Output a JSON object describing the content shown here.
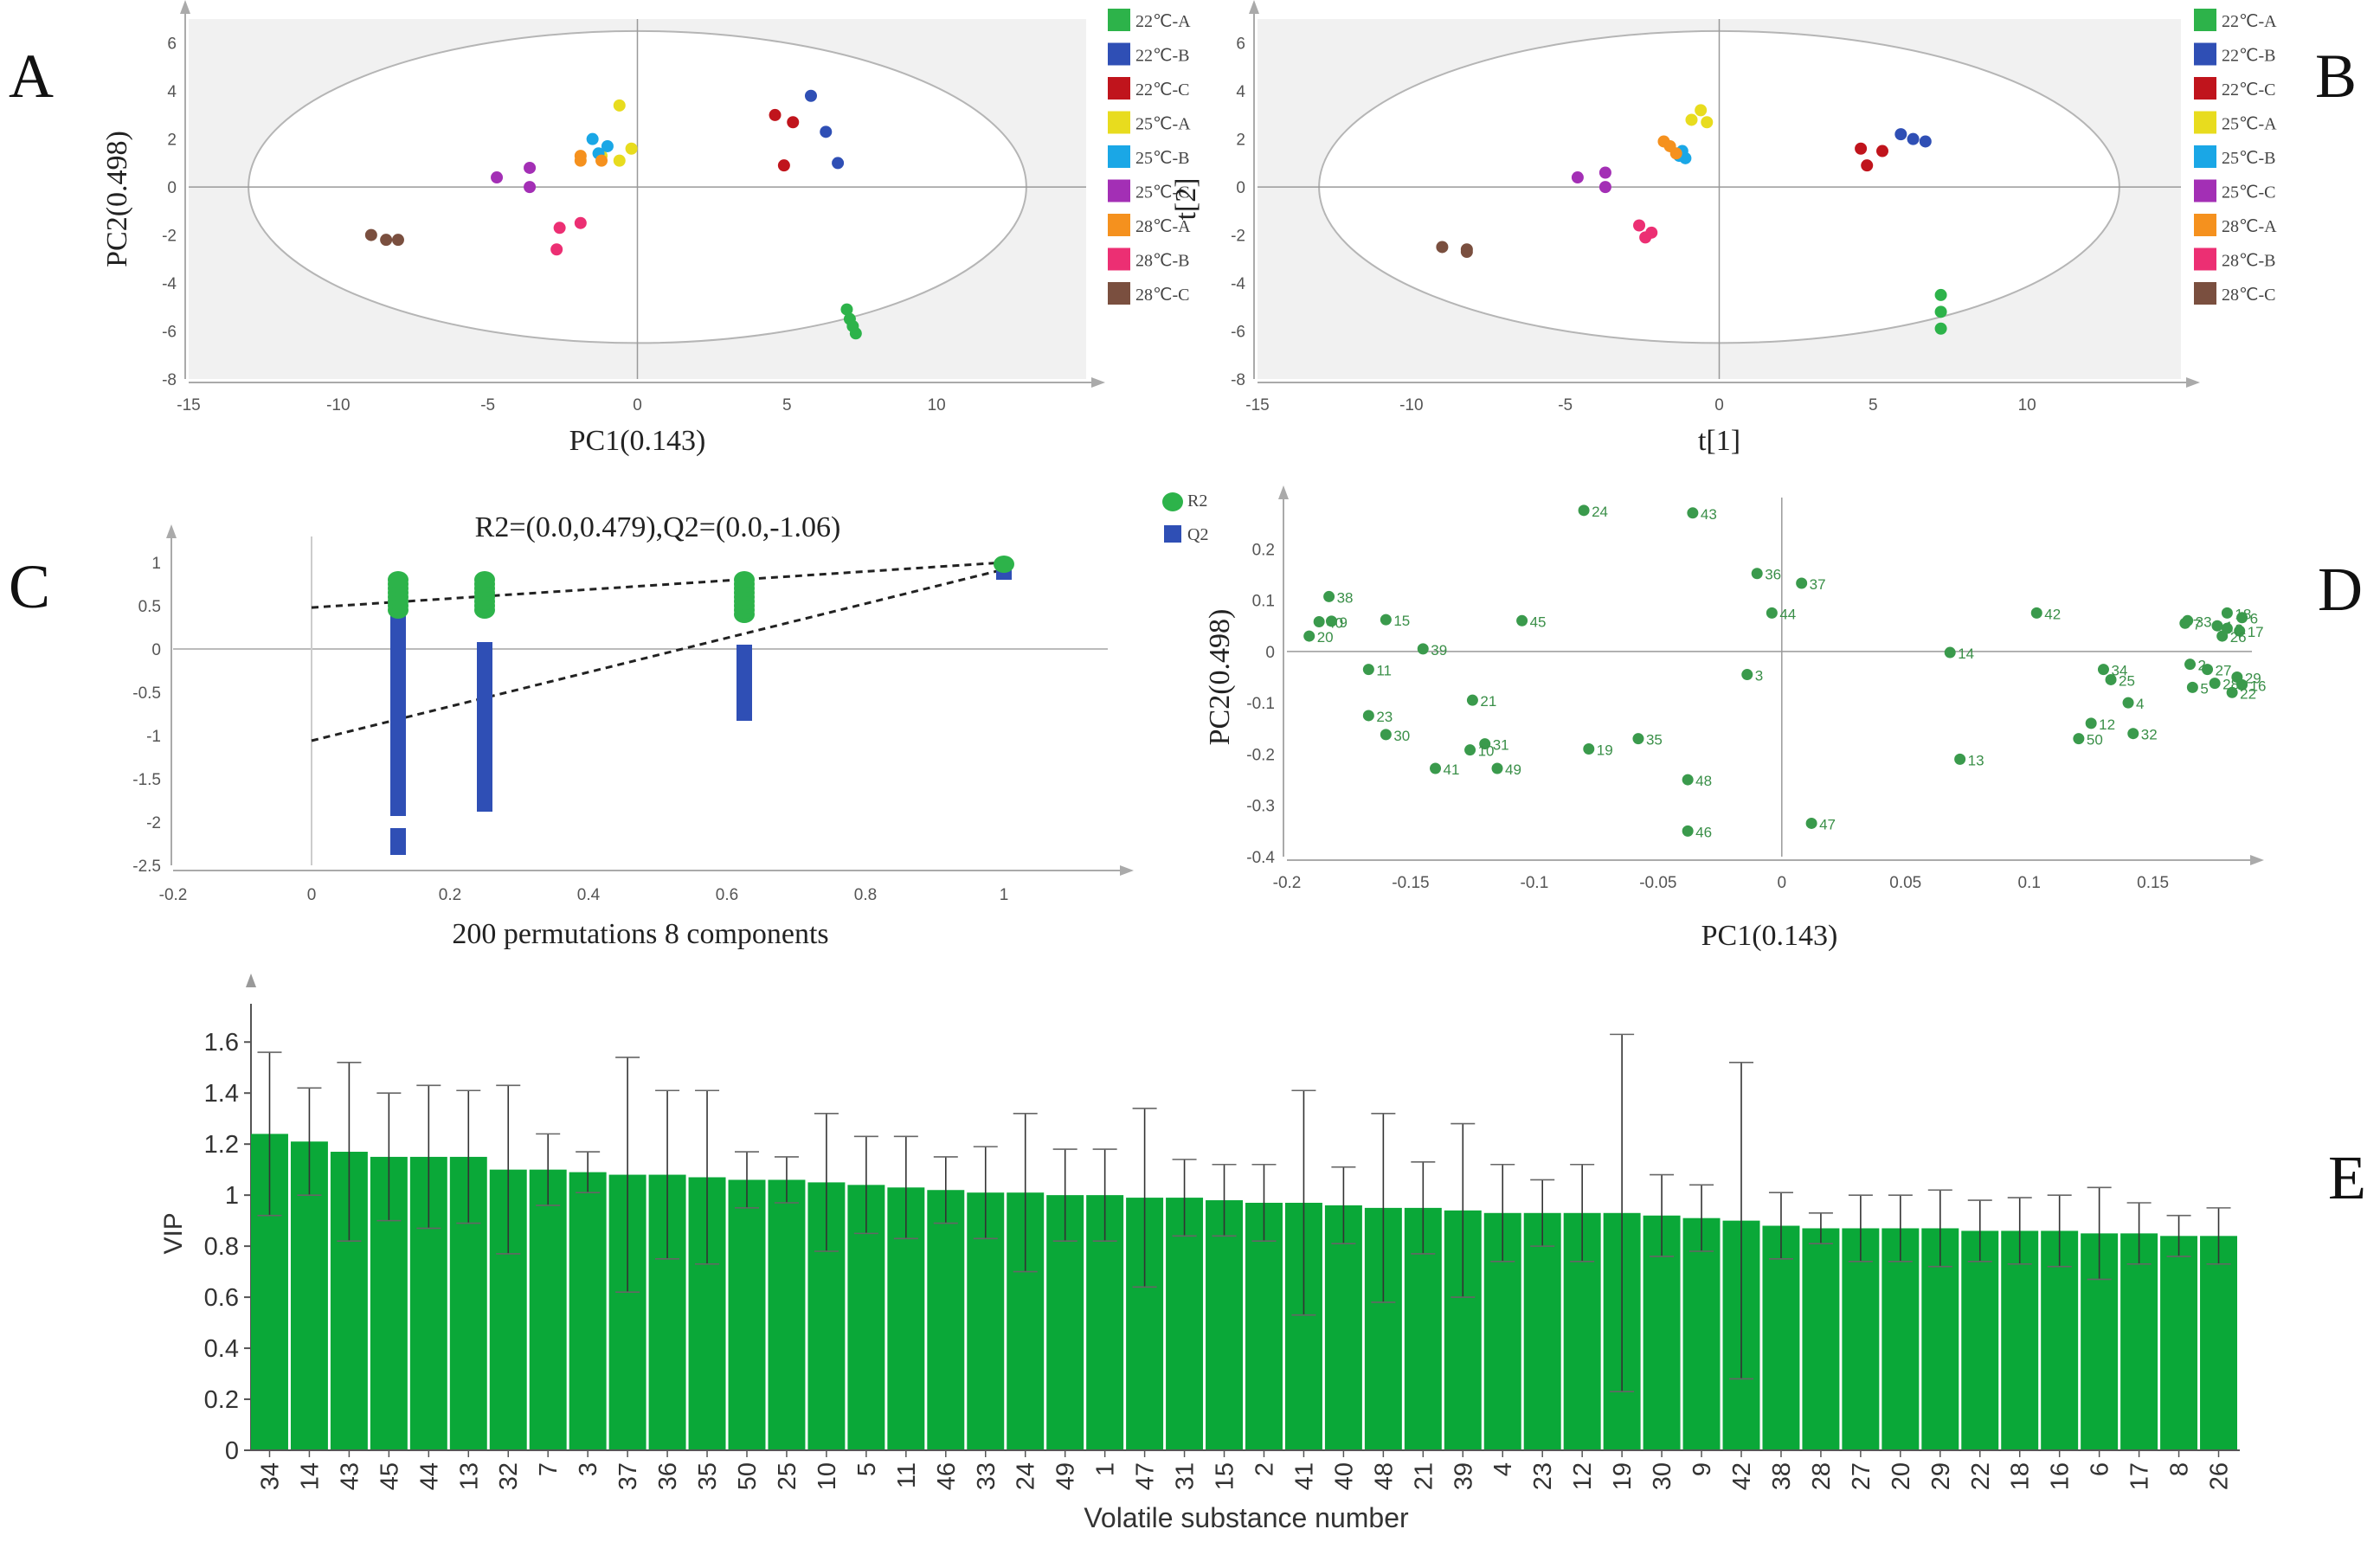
{
  "panel_letters": [
    "A",
    "B",
    "C",
    "D",
    "E"
  ],
  "chart_data": [
    {
      "panel": "A",
      "type": "scatter",
      "xlabel": "PC1(0.143)",
      "ylabel": "PC2(0.498)",
      "xlim": [
        -15,
        15
      ],
      "ylim": [
        -8,
        7
      ],
      "xticks": [
        -15,
        -10,
        -5,
        0,
        5,
        10
      ],
      "yticks": [
        -8,
        -6,
        -4,
        -2,
        0,
        2,
        4,
        6
      ],
      "ellipse": {
        "rx": 13,
        "ry": 6.5
      },
      "legend": {
        "position": "right"
      },
      "series": [
        {
          "name": "22℃-A",
          "color": "#2db34a",
          "points": [
            [
              7.0,
              -5.1
            ],
            [
              7.1,
              -5.5
            ],
            [
              7.3,
              -6.1
            ],
            [
              7.2,
              -5.8
            ]
          ]
        },
        {
          "name": "22℃-B",
          "color": "#2f4fb5",
          "points": [
            [
              5.8,
              3.8
            ],
            [
              6.3,
              2.3
            ],
            [
              6.7,
              1.0
            ]
          ]
        },
        {
          "name": "22℃-C",
          "color": "#c0141c",
          "points": [
            [
              4.6,
              3.0
            ],
            [
              5.2,
              2.7
            ],
            [
              4.9,
              0.9
            ]
          ]
        },
        {
          "name": "25℃-A",
          "color": "#e8dc1e",
          "points": [
            [
              -0.6,
              3.4
            ],
            [
              -0.2,
              1.6
            ],
            [
              -0.6,
              1.1
            ],
            [
              -1.2,
              1.3
            ]
          ]
        },
        {
          "name": "25℃-B",
          "color": "#1aa7e6",
          "points": [
            [
              -1.5,
              2.0
            ],
            [
              -1.0,
              1.7
            ],
            [
              -1.3,
              1.4
            ]
          ]
        },
        {
          "name": "25℃-C",
          "color": "#a32fb5",
          "points": [
            [
              -4.7,
              0.4
            ],
            [
              -3.6,
              0.8
            ],
            [
              -3.6,
              0.0
            ]
          ]
        },
        {
          "name": "28℃-A",
          "color": "#f5911e",
          "points": [
            [
              -1.9,
              1.3
            ],
            [
              -1.9,
              1.1
            ],
            [
              -1.2,
              1.1
            ]
          ]
        },
        {
          "name": "28℃-B",
          "color": "#ec2f73",
          "points": [
            [
              -2.6,
              -1.7
            ],
            [
              -2.7,
              -2.6
            ],
            [
              -1.9,
              -1.5
            ]
          ]
        },
        {
          "name": "28℃-C",
          "color": "#7a4f3f",
          "points": [
            [
              -8.9,
              -2.0
            ],
            [
              -8.4,
              -2.2
            ],
            [
              -8.0,
              -2.2
            ]
          ]
        }
      ]
    },
    {
      "panel": "B",
      "type": "scatter",
      "xlabel": "t[1]",
      "ylabel": "t[2]",
      "xlim": [
        -15,
        15
      ],
      "ylim": [
        -8,
        7
      ],
      "xticks": [
        -15,
        -10,
        -5,
        0,
        5,
        10
      ],
      "yticks": [
        -8,
        -6,
        -4,
        -2,
        0,
        2,
        4,
        6
      ],
      "ellipse": {
        "rx": 13,
        "ry": 6.5
      },
      "legend": {
        "position": "right"
      },
      "series": [
        {
          "name": "22℃-A",
          "color": "#2db34a",
          "points": [
            [
              7.2,
              -4.5
            ],
            [
              7.2,
              -5.2
            ],
            [
              7.2,
              -5.9
            ]
          ]
        },
        {
          "name": "22℃-B",
          "color": "#2f4fb5",
          "points": [
            [
              5.9,
              2.2
            ],
            [
              6.3,
              2.0
            ],
            [
              6.7,
              1.9
            ]
          ]
        },
        {
          "name": "22℃-C",
          "color": "#c0141c",
          "points": [
            [
              4.6,
              1.6
            ],
            [
              4.8,
              0.9
            ],
            [
              5.3,
              1.5
            ]
          ]
        },
        {
          "name": "25℃-A",
          "color": "#e8dc1e",
          "points": [
            [
              -0.9,
              2.8
            ],
            [
              -0.6,
              3.2
            ],
            [
              -0.4,
              2.7
            ]
          ]
        },
        {
          "name": "25℃-B",
          "color": "#1aa7e6",
          "points": [
            [
              -1.2,
              1.5
            ],
            [
              -1.1,
              1.2
            ],
            [
              -1.3,
              1.3
            ]
          ]
        },
        {
          "name": "25℃-C",
          "color": "#a32fb5",
          "points": [
            [
              -4.6,
              0.4
            ],
            [
              -3.7,
              0.6
            ],
            [
              -3.7,
              0.0
            ]
          ]
        },
        {
          "name": "28℃-A",
          "color": "#f5911e",
          "points": [
            [
              -1.8,
              1.9
            ],
            [
              -1.6,
              1.7
            ],
            [
              -1.4,
              1.4
            ]
          ]
        },
        {
          "name": "28℃-B",
          "color": "#ec2f73",
          "points": [
            [
              -2.6,
              -1.6
            ],
            [
              -2.4,
              -2.1
            ],
            [
              -2.2,
              -1.9
            ]
          ]
        },
        {
          "name": "28℃-C",
          "color": "#7a4f3f",
          "points": [
            [
              -9.0,
              -2.5
            ],
            [
              -8.2,
              -2.6
            ],
            [
              -8.2,
              -2.7
            ]
          ]
        }
      ]
    },
    {
      "panel": "C",
      "type": "scatter",
      "title": "R2=(0.0,0.479),Q2=(0.0,-1.06)",
      "xlabel": "200 permutations 8 components",
      "xlim": [
        -0.2,
        1.15
      ],
      "ylim": [
        -2.5,
        1.3
      ],
      "xticks": [
        -0.2,
        0,
        0.2,
        0.4,
        0.6,
        0.8,
        1
      ],
      "yticks": [
        -2.5,
        -2,
        -1.5,
        -1,
        -0.5,
        0,
        0.5,
        1
      ],
      "legend": {
        "position": "top-right"
      },
      "series": [
        {
          "name": "R2",
          "marker": "circle",
          "color": "#2db34a",
          "x": [
            0.125,
            0.25,
            0.625,
            1.0
          ],
          "ymin": [
            0.45,
            0.45,
            0.4,
            0.98
          ],
          "ymax": [
            0.82,
            0.8,
            0.8,
            1.0
          ]
        },
        {
          "name": "Q2",
          "marker": "square",
          "color": "#2f4fb5",
          "x": [
            0.125,
            0.25,
            0.625,
            1.0
          ],
          "ymin": [
            -1.85,
            -1.8,
            -0.75,
            0.88
          ],
          "ymax": [
            0.35,
            0.0,
            0.0,
            0.95
          ],
          "outliers": [
            [
              0.125,
              -2.3
            ],
            [
              0.125,
              -2.15
            ]
          ]
        }
      ],
      "regression_lines": [
        {
          "name": "R2",
          "intercept": 0.479,
          "slope": 0.521
        },
        {
          "name": "Q2",
          "intercept": -1.06,
          "slope": 1.98
        }
      ]
    },
    {
      "panel": "D",
      "type": "scatter",
      "xlabel": "PC1(0.143)",
      "ylabel": "PC2(0.498)",
      "xlim": [
        -0.2,
        0.19
      ],
      "ylim": [
        -0.4,
        0.3
      ],
      "xticks": [
        -0.2,
        -0.15,
        -0.1,
        -0.05,
        0,
        0.05,
        0.1,
        0.15
      ],
      "yticks": [
        -0.4,
        -0.3,
        -0.2,
        -0.1,
        0,
        0.1,
        0.2
      ],
      "color": "#3a9a4c",
      "legend": {
        "position": "top-left"
      },
      "points": [
        {
          "label": "24",
          "x": -0.08,
          "y": 0.275
        },
        {
          "label": "43",
          "x": -0.036,
          "y": 0.27
        },
        {
          "label": "38",
          "x": -0.183,
          "y": 0.107
        },
        {
          "label": "40",
          "x": -0.187,
          "y": 0.058
        },
        {
          "label": "9",
          "x": -0.182,
          "y": 0.059
        },
        {
          "label": "15",
          "x": -0.16,
          "y": 0.062
        },
        {
          "label": "20",
          "x": -0.191,
          "y": 0.03
        },
        {
          "label": "11",
          "x": -0.167,
          "y": -0.035
        },
        {
          "label": "39",
          "x": -0.145,
          "y": 0.005
        },
        {
          "label": "45",
          "x": -0.105,
          "y": 0.06
        },
        {
          "label": "36",
          "x": -0.01,
          "y": 0.152
        },
        {
          "label": "37",
          "x": 0.008,
          "y": 0.133
        },
        {
          "label": "44",
          "x": -0.004,
          "y": 0.075
        },
        {
          "label": "3",
          "x": -0.014,
          "y": -0.045
        },
        {
          "label": "21",
          "x": -0.125,
          "y": -0.095
        },
        {
          "label": "23",
          "x": -0.167,
          "y": -0.125
        },
        {
          "label": "30",
          "x": -0.16,
          "y": -0.162
        },
        {
          "label": "31",
          "x": -0.12,
          "y": -0.18
        },
        {
          "label": "10",
          "x": -0.126,
          "y": -0.192
        },
        {
          "label": "41",
          "x": -0.14,
          "y": -0.228
        },
        {
          "label": "49",
          "x": -0.115,
          "y": -0.228
        },
        {
          "label": "19",
          "x": -0.078,
          "y": -0.19
        },
        {
          "label": "35",
          "x": -0.058,
          "y": -0.17
        },
        {
          "label": "48",
          "x": -0.038,
          "y": -0.25
        },
        {
          "label": "46",
          "x": -0.038,
          "y": -0.35
        },
        {
          "label": "47",
          "x": 0.012,
          "y": -0.335
        },
        {
          "label": "14",
          "x": 0.068,
          "y": -0.002
        },
        {
          "label": "13",
          "x": 0.072,
          "y": -0.21
        },
        {
          "label": "42",
          "x": 0.103,
          "y": 0.075
        },
        {
          "label": "34",
          "x": 0.13,
          "y": -0.035
        },
        {
          "label": "25",
          "x": 0.133,
          "y": -0.055
        },
        {
          "label": "4",
          "x": 0.14,
          "y": -0.1
        },
        {
          "label": "12",
          "x": 0.125,
          "y": -0.14
        },
        {
          "label": "50",
          "x": 0.12,
          "y": -0.17
        },
        {
          "label": "32",
          "x": 0.142,
          "y": -0.16
        },
        {
          "label": "7",
          "x": 0.163,
          "y": 0.055
        },
        {
          "label": "33",
          "x": 0.164,
          "y": 0.06
        },
        {
          "label": "1",
          "x": 0.176,
          "y": 0.05
        },
        {
          "label": "18",
          "x": 0.18,
          "y": 0.075
        },
        {
          "label": "6",
          "x": 0.186,
          "y": 0.066
        },
        {
          "label": "8",
          "x": 0.18,
          "y": 0.045
        },
        {
          "label": "17",
          "x": 0.185,
          "y": 0.04
        },
        {
          "label": "26",
          "x": 0.178,
          "y": 0.03
        },
        {
          "label": "2",
          "x": 0.165,
          "y": -0.025
        },
        {
          "label": "27",
          "x": 0.172,
          "y": -0.035
        },
        {
          "label": "5",
          "x": 0.166,
          "y": -0.07
        },
        {
          "label": "28",
          "x": 0.175,
          "y": -0.062
        },
        {
          "label": "29",
          "x": 0.184,
          "y": -0.05
        },
        {
          "label": "16",
          "x": 0.186,
          "y": -0.065
        },
        {
          "label": "22",
          "x": 0.182,
          "y": -0.08
        }
      ]
    },
    {
      "panel": "E",
      "type": "bar",
      "xlabel": "Volatile substance number",
      "ylabel": "VIP",
      "ylim": [
        0,
        1.75
      ],
      "yticks": [
        0,
        0.2,
        0.4,
        0.6,
        0.8,
        1,
        1.2,
        1.4,
        1.6
      ],
      "color": "#0aa838",
      "categories": [
        "34",
        "14",
        "43",
        "45",
        "44",
        "13",
        "32",
        "7",
        "3",
        "37",
        "36",
        "35",
        "50",
        "25",
        "10",
        "5",
        "11",
        "46",
        "33",
        "24",
        "49",
        "1",
        "47",
        "31",
        "15",
        "2",
        "41",
        "40",
        "48",
        "21",
        "39",
        "4",
        "23",
        "12",
        "19",
        "30",
        "9",
        "42",
        "38",
        "28",
        "27",
        "20",
        "29",
        "22",
        "18",
        "16",
        "6",
        "17",
        "8",
        "26"
      ],
      "values": [
        1.24,
        1.21,
        1.17,
        1.15,
        1.15,
        1.15,
        1.1,
        1.1,
        1.09,
        1.08,
        1.08,
        1.07,
        1.06,
        1.06,
        1.05,
        1.04,
        1.03,
        1.02,
        1.01,
        1.01,
        1.0,
        1.0,
        0.99,
        0.99,
        0.98,
        0.97,
        0.97,
        0.96,
        0.95,
        0.95,
        0.94,
        0.93,
        0.93,
        0.93,
        0.93,
        0.92,
        0.91,
        0.9,
        0.88,
        0.87,
        0.87,
        0.87,
        0.87,
        0.86,
        0.86,
        0.86,
        0.85,
        0.85,
        0.84,
        0.84
      ],
      "errors": [
        0.32,
        0.21,
        0.35,
        0.25,
        0.28,
        0.26,
        0.33,
        0.14,
        0.08,
        0.46,
        0.33,
        0.34,
        0.11,
        0.09,
        0.27,
        0.19,
        0.2,
        0.13,
        0.18,
        0.31,
        0.18,
        0.18,
        0.35,
        0.15,
        0.14,
        0.15,
        0.44,
        0.15,
        0.37,
        0.18,
        0.34,
        0.19,
        0.13,
        0.19,
        0.7,
        0.16,
        0.13,
        0.62,
        0.13,
        0.06,
        0.13,
        0.13,
        0.15,
        0.12,
        0.13,
        0.14,
        0.18,
        0.12,
        0.08,
        0.11
      ]
    }
  ]
}
